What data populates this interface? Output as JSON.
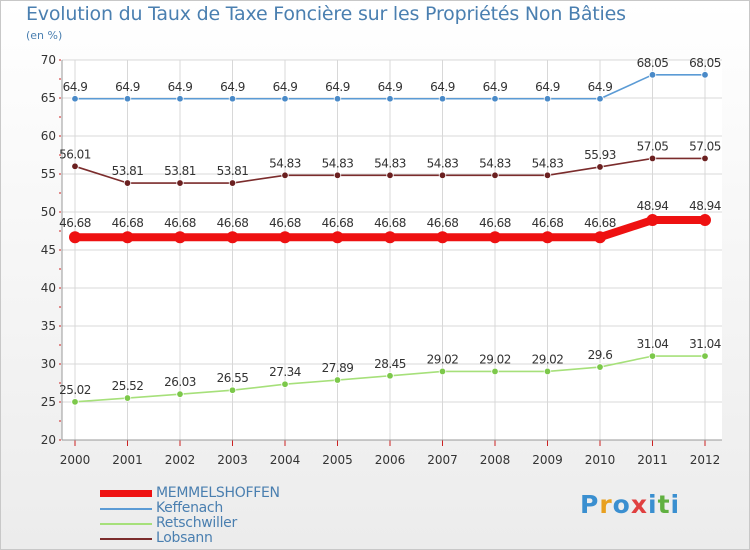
{
  "title": "Evolution du Taux de Taxe Foncière sur les Propriétés Non Bâties",
  "unit": "(en %)",
  "logo": {
    "text": "Proxiti",
    "colors": [
      "#3a8fd0",
      "#e8a020",
      "#3a8fd0",
      "#e04040",
      "#3a8fd0",
      "#60b040",
      "#3a8fd0"
    ]
  },
  "chart_data": {
    "type": "line",
    "title": "Evolution du Taux de Taxe Foncière sur les Propriétés Non Bâties",
    "ylabel": "(en %)",
    "xlabel": "",
    "ylim": [
      20,
      70
    ],
    "yticks": [
      20,
      25,
      30,
      35,
      40,
      45,
      50,
      55,
      60,
      65,
      70
    ],
    "x": [
      "2000",
      "2001",
      "2002",
      "2003",
      "2004",
      "2005",
      "2006",
      "2007",
      "2008",
      "2009",
      "2010",
      "2011",
      "2012"
    ],
    "series": [
      {
        "name": "Keffenach",
        "color": "#5b9bd5",
        "marker": "#4a8ac8",
        "weight": "thin",
        "values": [
          64.9,
          64.9,
          64.9,
          64.9,
          64.9,
          64.9,
          64.9,
          64.9,
          64.9,
          64.9,
          64.9,
          68.05,
          68.05
        ],
        "labels": [
          "64.9",
          "64.9",
          "64.9",
          "64.9",
          "64.9",
          "64.9",
          "64.9",
          "64.9",
          "64.9",
          "64.9",
          "64.9",
          "68.05",
          "68.05"
        ]
      },
      {
        "name": "Lobsann",
        "color": "#7b2c2c",
        "marker": "#6b2020",
        "weight": "thin",
        "values": [
          56.01,
          53.81,
          53.81,
          53.81,
          54.83,
          54.83,
          54.83,
          54.83,
          54.83,
          54.83,
          55.93,
          57.05,
          57.05
        ],
        "labels": [
          "56.01",
          "53.81",
          "53.81",
          "53.81",
          "54.83",
          "54.83",
          "54.83",
          "54.83",
          "54.83",
          "54.83",
          "55.93",
          "57.05",
          "57.05"
        ]
      },
      {
        "name": "MEMMELSHOFFEN",
        "color": "#ee1111",
        "marker": "#ee1111",
        "weight": "thick",
        "values": [
          46.68,
          46.68,
          46.68,
          46.68,
          46.68,
          46.68,
          46.68,
          46.68,
          46.68,
          46.68,
          46.68,
          48.94,
          48.94
        ],
        "labels": [
          "46.68",
          "46.68",
          "46.68",
          "46.68",
          "46.68",
          "46.68",
          "46.68",
          "46.68",
          "46.68",
          "46.68",
          "46.68",
          "48.94",
          "48.94"
        ]
      },
      {
        "name": "Retschwiller",
        "color": "#a6e07a",
        "marker": "#7cc84a",
        "weight": "thin",
        "values": [
          25.02,
          25.52,
          26.03,
          26.55,
          27.34,
          27.89,
          28.45,
          29.02,
          29.02,
          29.02,
          29.6,
          31.04,
          31.04
        ],
        "labels": [
          "25.02",
          "25.52",
          "26.03",
          "26.55",
          "27.34",
          "27.89",
          "28.45",
          "29.02",
          "29.02",
          "29.02",
          "29.6",
          "31.04",
          "31.04"
        ]
      }
    ],
    "legend": [
      {
        "name": "MEMMELSHOFFEN",
        "color": "#ee1111",
        "weight": "thick"
      },
      {
        "name": "Keffenach",
        "color": "#5b9bd5",
        "weight": "thin"
      },
      {
        "name": "Retschwiller",
        "color": "#a6e07a",
        "weight": "thin"
      },
      {
        "name": "Lobsann",
        "color": "#7b2c2c",
        "weight": "thin"
      }
    ]
  }
}
